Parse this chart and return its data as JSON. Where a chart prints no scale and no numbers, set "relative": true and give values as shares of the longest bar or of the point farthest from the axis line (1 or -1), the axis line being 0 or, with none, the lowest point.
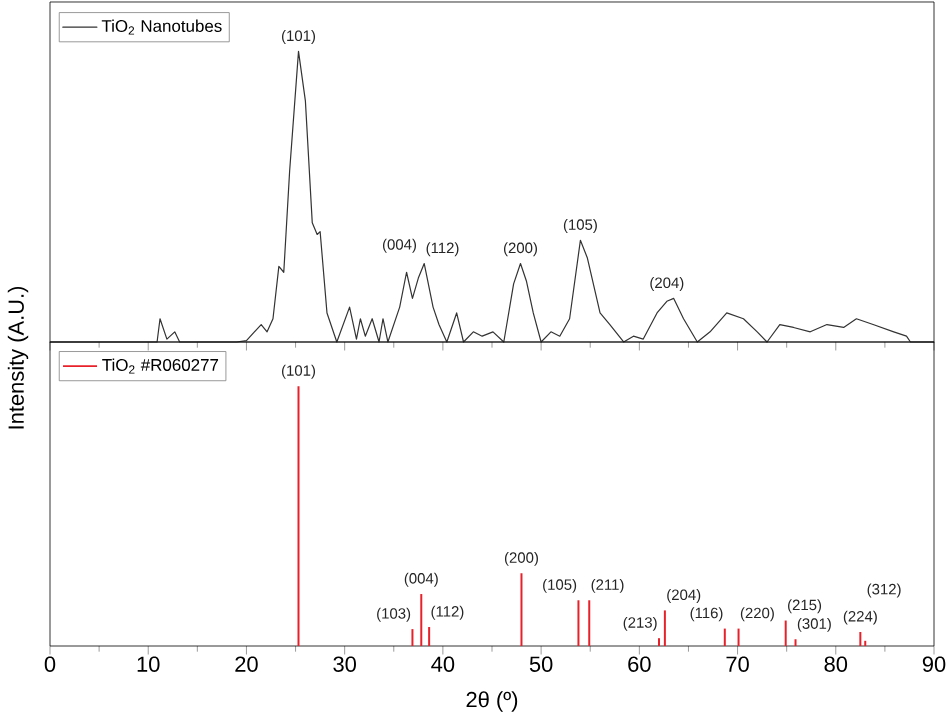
{
  "chart_data": [
    {
      "type": "line",
      "relative": true,
      "ylabel": "Intensity (A.U.)",
      "xlim": [
        0,
        90
      ],
      "xticks": [
        0,
        10,
        20,
        30,
        40,
        50,
        60,
        70,
        80,
        90
      ],
      "tick_labels": false,
      "legend": "top left",
      "series": [
        {
          "name": "TiO$_{2}$ Nanotubes",
          "color": "#333333",
          "x": [
            0,
            10.9,
            11.2,
            11.9,
            12.7,
            13.2,
            16.3,
            19.0,
            20.0,
            21.5,
            22.1,
            22.7,
            23.3,
            23.8,
            24.4,
            25.3,
            26.0,
            26.7,
            27.2,
            27.5,
            28.2,
            29.2,
            30.5,
            31.2,
            31.6,
            32.1,
            32.8,
            33.5,
            33.9,
            34.4,
            35.6,
            36.3,
            36.9,
            37.5,
            38.1,
            39.0,
            39.6,
            40.4,
            41.4,
            42.1,
            43.1,
            44.0,
            45.1,
            46.2,
            47.2,
            47.9,
            48.5,
            49.2,
            50.0,
            51.0,
            51.9,
            52.9,
            54.0,
            54.7,
            56.0,
            57.0,
            58.4,
            59.4,
            60.4,
            61.8,
            62.8,
            63.5,
            64.5,
            65.9,
            67.2,
            68.9,
            70.6,
            72.0,
            73.0,
            74.3,
            75.7,
            77.4,
            79.1,
            80.8,
            82.1,
            83.8,
            85.9,
            87.2,
            87.6,
            90
          ],
          "values": [
            0,
            0,
            0.08,
            0.01,
            0.035,
            0,
            0,
            0,
            0.005,
            0.06,
            0.035,
            0.08,
            0.26,
            0.24,
            0.59,
            1.0,
            0.83,
            0.41,
            0.37,
            0.38,
            0.1,
            0,
            0.12,
            0.01,
            0.08,
            0.02,
            0.08,
            0,
            0.08,
            0,
            0.12,
            0.24,
            0.15,
            0.22,
            0.27,
            0.12,
            0.06,
            0,
            0.1,
            0,
            0.035,
            0.02,
            0.035,
            0,
            0.2,
            0.27,
            0.21,
            0.1,
            0,
            0.035,
            0.02,
            0.08,
            0.35,
            0.29,
            0.1,
            0.06,
            0,
            0.02,
            0.01,
            0.1,
            0.14,
            0.15,
            0.08,
            0,
            0.035,
            0.1,
            0.08,
            0.035,
            0,
            0.06,
            0.05,
            0.035,
            0.06,
            0.05,
            0.08,
            0.06,
            0.035,
            0.02,
            0,
            0
          ]
        }
      ],
      "annotations": [
        {
          "text": "(101)",
          "x": 25.3,
          "y": 1.0
        },
        {
          "text": "(004)",
          "x": 37.5,
          "y": 0.22
        },
        {
          "text": "(112)",
          "x": 38.1,
          "y": 0.27
        },
        {
          "text": "(200)",
          "x": 47.9,
          "y": 0.27
        },
        {
          "text": "(105)",
          "x": 54.0,
          "y": 0.35
        },
        {
          "text": "(204)",
          "x": 62.8,
          "y": 0.15
        }
      ]
    },
    {
      "type": "bar",
      "relative": true,
      "xlabel": "2θ (º)",
      "xlim": [
        0,
        90
      ],
      "xticks": [
        0,
        10,
        20,
        30,
        40,
        50,
        60,
        70,
        80,
        90
      ],
      "tick_labels": "x",
      "legend": "top left",
      "series": [
        {
          "name": "TiO$_{2}$ #R060277",
          "color": "#e8202a",
          "x": [
            25.3,
            36.9,
            37.8,
            38.6,
            48.0,
            53.8,
            54.9,
            62.0,
            62.6,
            68.7,
            70.1,
            74.9,
            75.9,
            82.5,
            83.0
          ],
          "values": [
            1.0,
            0.065,
            0.2,
            0.073,
            0.28,
            0.176,
            0.176,
            0.03,
            0.137,
            0.067,
            0.067,
            0.098,
            0.026,
            0.054,
            0.02
          ]
        }
      ],
      "annotations": [
        {
          "text": "(101)",
          "x": 25.3,
          "y": 1.0
        },
        {
          "text": "(103)",
          "x": 36.9,
          "y": 0.065
        },
        {
          "text": "(004)",
          "x": 37.8,
          "y": 0.2
        },
        {
          "text": "(112)",
          "x": 38.6,
          "y": 0.073
        },
        {
          "text": "(200)",
          "x": 48.0,
          "y": 0.28
        },
        {
          "text": "(105)",
          "x": 53.8,
          "y": 0.176
        },
        {
          "text": "(211)",
          "x": 54.9,
          "y": 0.176
        },
        {
          "text": "(213)",
          "x": 62.0,
          "y": 0.03
        },
        {
          "text": "(204)",
          "x": 62.6,
          "y": 0.137
        },
        {
          "text": "(116)",
          "x": 68.7,
          "y": 0.067
        },
        {
          "text": "(220)",
          "x": 70.1,
          "y": 0.067
        },
        {
          "text": "(215)",
          "x": 74.9,
          "y": 0.098
        },
        {
          "text": "(301)",
          "x": 75.9,
          "y": 0.026
        },
        {
          "text": "(224)",
          "x": 82.5,
          "y": 0.054
        },
        {
          "text": "(312)",
          "x": 83.0,
          "y": 0.02
        }
      ]
    }
  ]
}
